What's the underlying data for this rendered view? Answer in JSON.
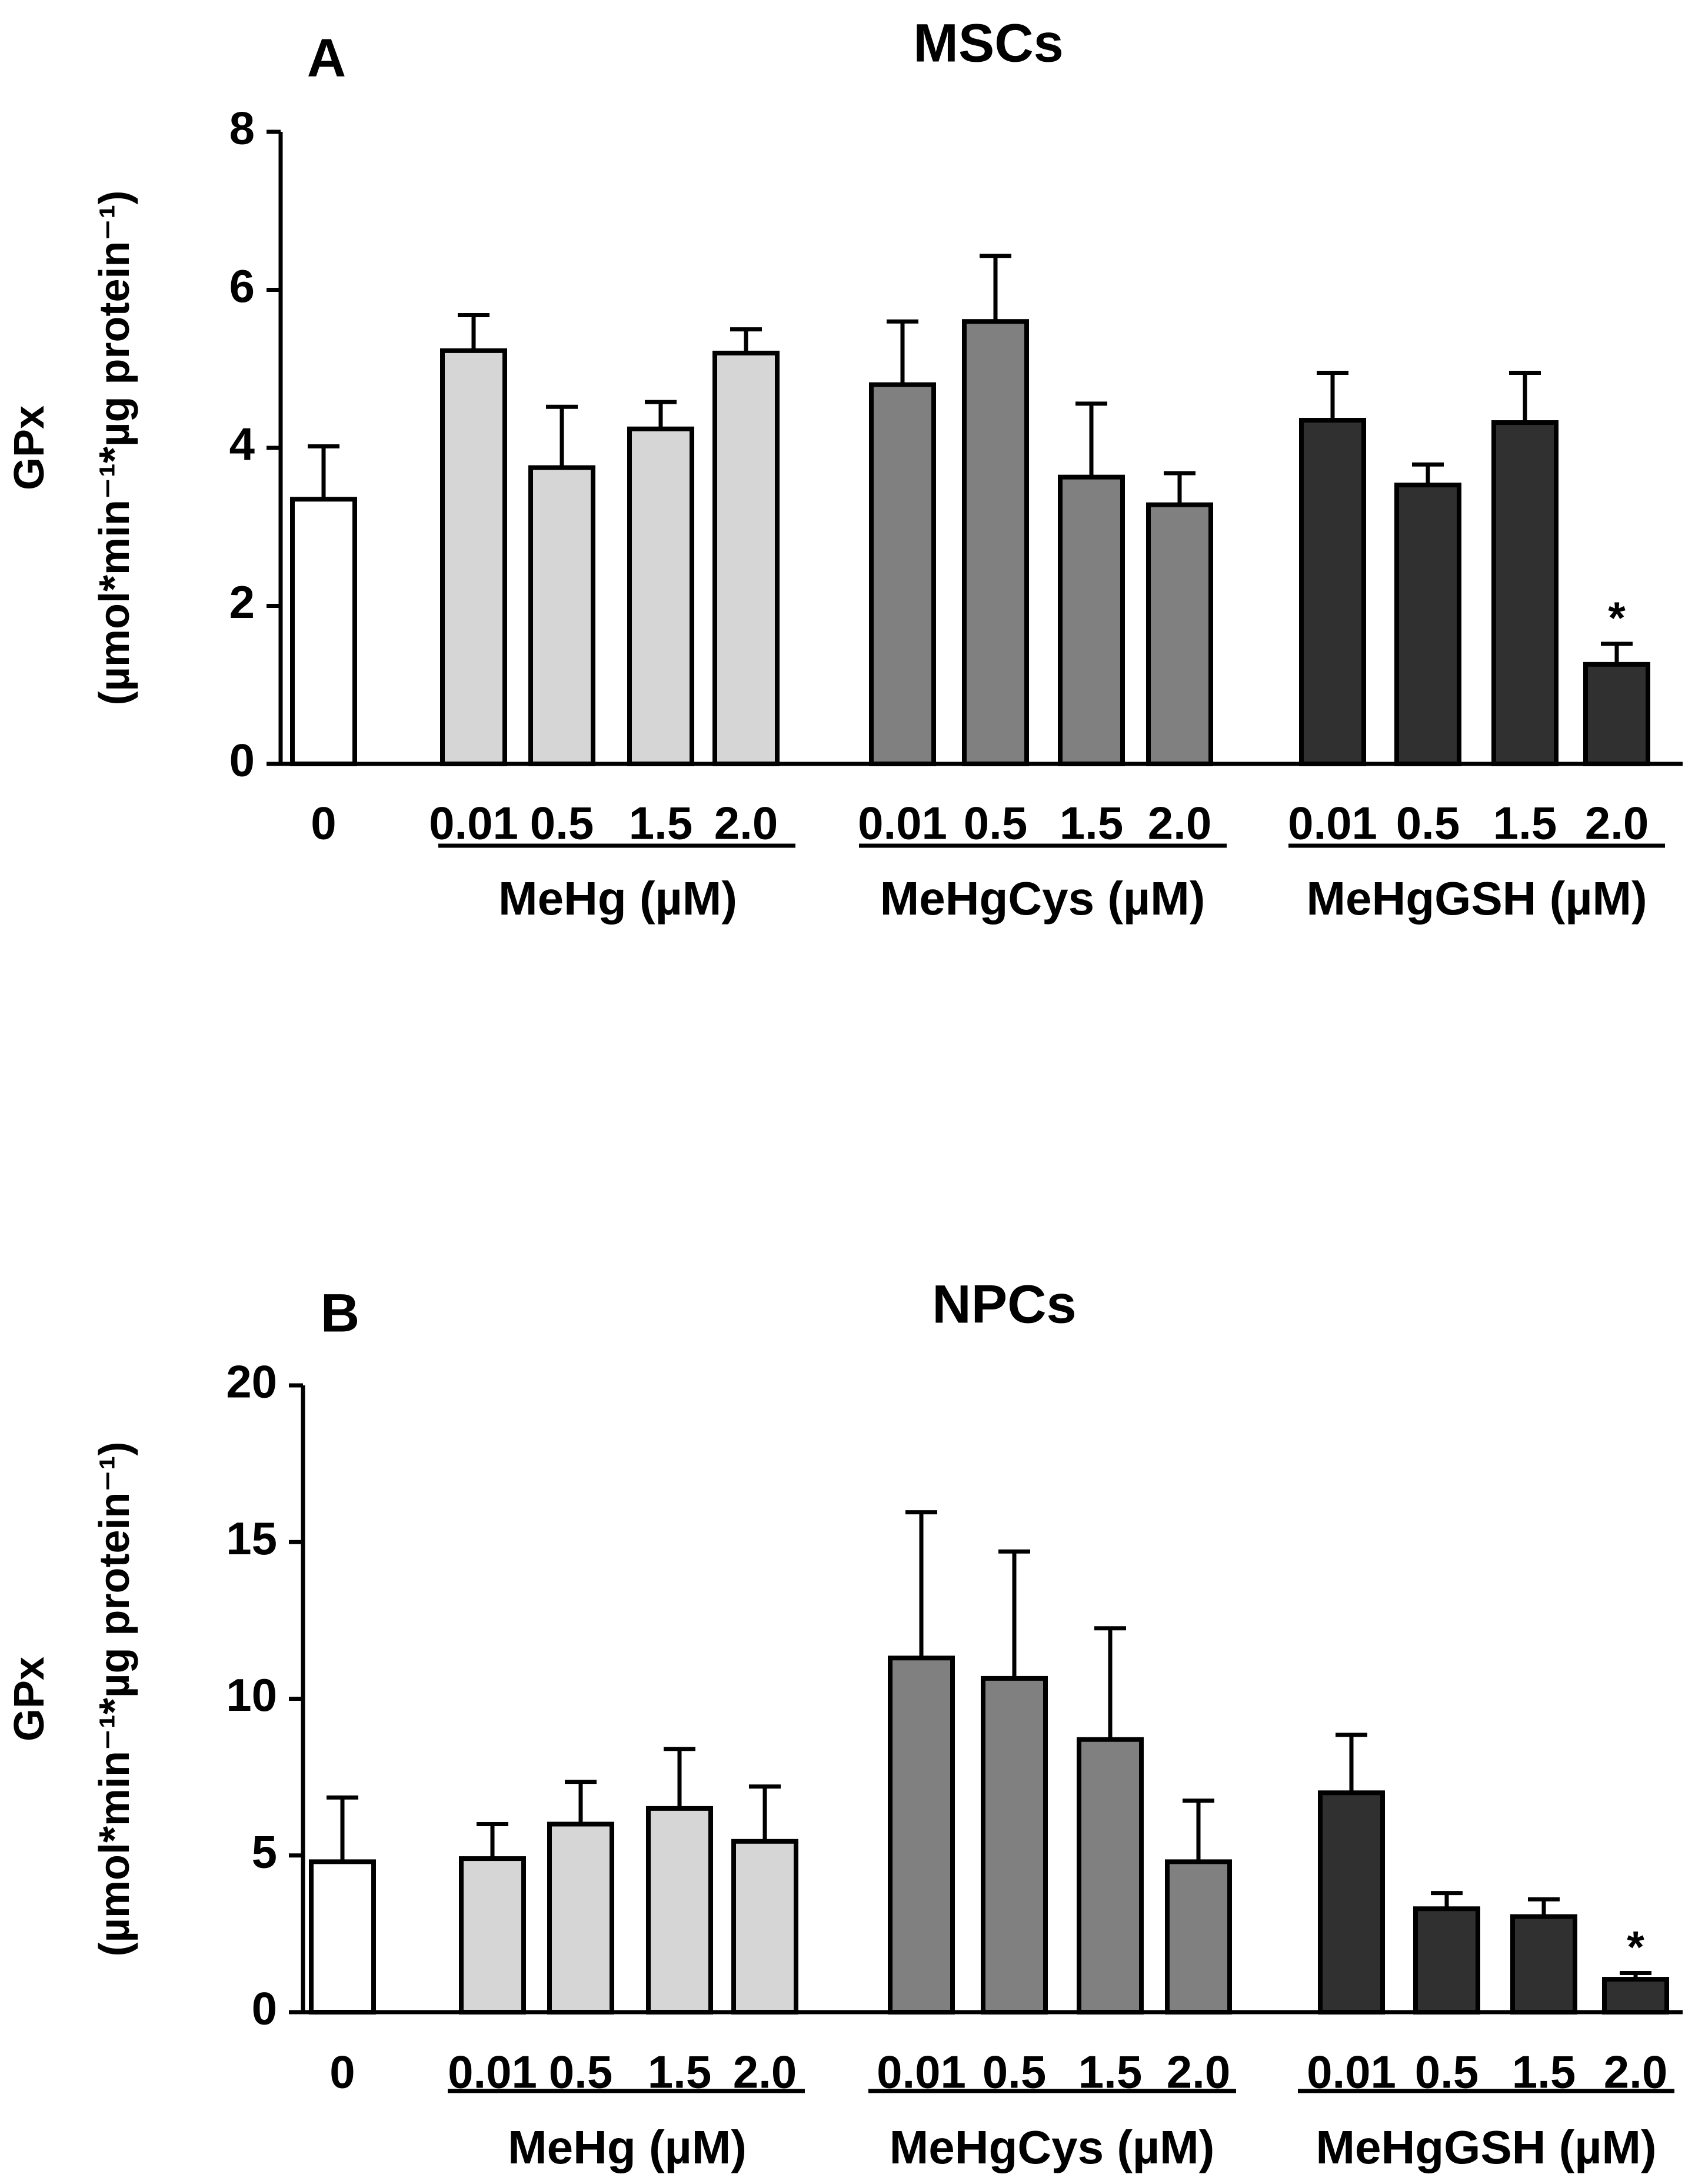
{
  "colors": {
    "control": "#ffffff",
    "MeHg": "#d6d6d6",
    "MeHgCys": "#808080",
    "MeHgGSH": "#303030",
    "stroke": "#000000"
  },
  "chart_data": [
    {
      "type": "bar",
      "panel_label": "A",
      "title": "MSCs",
      "ylabel_main": "GPx",
      "ylabel_units": "(µmol*min⁻¹*µg protein⁻¹)",
      "ylim": [
        0,
        8
      ],
      "yticks": [
        0,
        2,
        4,
        6,
        8
      ],
      "categories": [
        "0",
        "0.01",
        "0.5",
        "1.5",
        "2.0",
        "0.01",
        "0.5",
        "1.5",
        "2.0",
        "0.01",
        "0.5",
        "1.5",
        "2.0"
      ],
      "groups": [
        {
          "name": "control",
          "label": "",
          "indices": [
            0
          ]
        },
        {
          "name": "MeHg",
          "label": "MeHg (µM)",
          "indices": [
            1,
            2,
            3,
            4
          ]
        },
        {
          "name": "MeHgCys",
          "label": "MeHgCys (µM)",
          "indices": [
            5,
            6,
            7,
            8
          ]
        },
        {
          "name": "MeHgGSH",
          "label": "MeHgGSH (µM)",
          "indices": [
            9,
            10,
            11,
            12
          ]
        }
      ],
      "values": [
        3.35,
        5.23,
        3.75,
        4.24,
        5.2,
        4.8,
        5.6,
        3.63,
        3.28,
        4.35,
        3.53,
        4.32,
        1.26
      ],
      "errors": [
        0.67,
        0.45,
        0.77,
        0.34,
        0.3,
        0.8,
        0.83,
        0.93,
        0.4,
        0.6,
        0.26,
        0.63,
        0.26
      ],
      "annotations": [
        {
          "index": 12,
          "text": "*"
        }
      ]
    },
    {
      "type": "bar",
      "panel_label": "B",
      "title": "NPCs",
      "ylabel_main": "GPx",
      "ylabel_units": "(µmol*min⁻¹*µg protein⁻¹)",
      "ylim": [
        0,
        20
      ],
      "yticks": [
        0,
        5,
        10,
        15,
        20
      ],
      "categories": [
        "0",
        "0.01",
        "0.5",
        "1.5",
        "2.0",
        "0.01",
        "0.5",
        "1.5",
        "2.0",
        "0.01",
        "0.5",
        "1.5",
        "2.0"
      ],
      "groups": [
        {
          "name": "control",
          "label": "",
          "indices": [
            0
          ]
        },
        {
          "name": "MeHg",
          "label": "MeHg (µM)",
          "indices": [
            1,
            2,
            3,
            4
          ]
        },
        {
          "name": "MeHgCys",
          "label": "MeHgCys (µM)",
          "indices": [
            5,
            6,
            7,
            8
          ]
        },
        {
          "name": "MeHgGSH",
          "label": "MeHgGSH (µM)",
          "indices": [
            9,
            10,
            11,
            12
          ]
        }
      ],
      "values": [
        4.8,
        4.9,
        6.0,
        6.5,
        5.45,
        11.3,
        10.65,
        8.7,
        4.8,
        7.0,
        3.3,
        3.05,
        1.05
      ],
      "errors": [
        2.05,
        1.1,
        1.35,
        1.9,
        1.75,
        4.65,
        4.05,
        3.55,
        1.95,
        1.85,
        0.5,
        0.55,
        0.2
      ],
      "annotations": [
        {
          "index": 12,
          "text": "*"
        }
      ]
    }
  ]
}
